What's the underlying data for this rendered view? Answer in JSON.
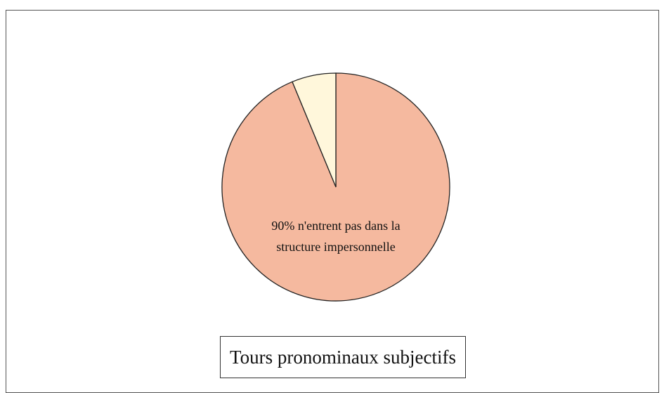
{
  "chart_data": {
    "type": "pie",
    "title": "Tours pronominaux subjectifs",
    "values": [
      90,
      6
    ],
    "value_labels": [
      "90% n'entrent pas dans la structure impersonnelle",
      null
    ],
    "colors": [
      "#f5b99f",
      "#fff7db"
    ]
  }
}
